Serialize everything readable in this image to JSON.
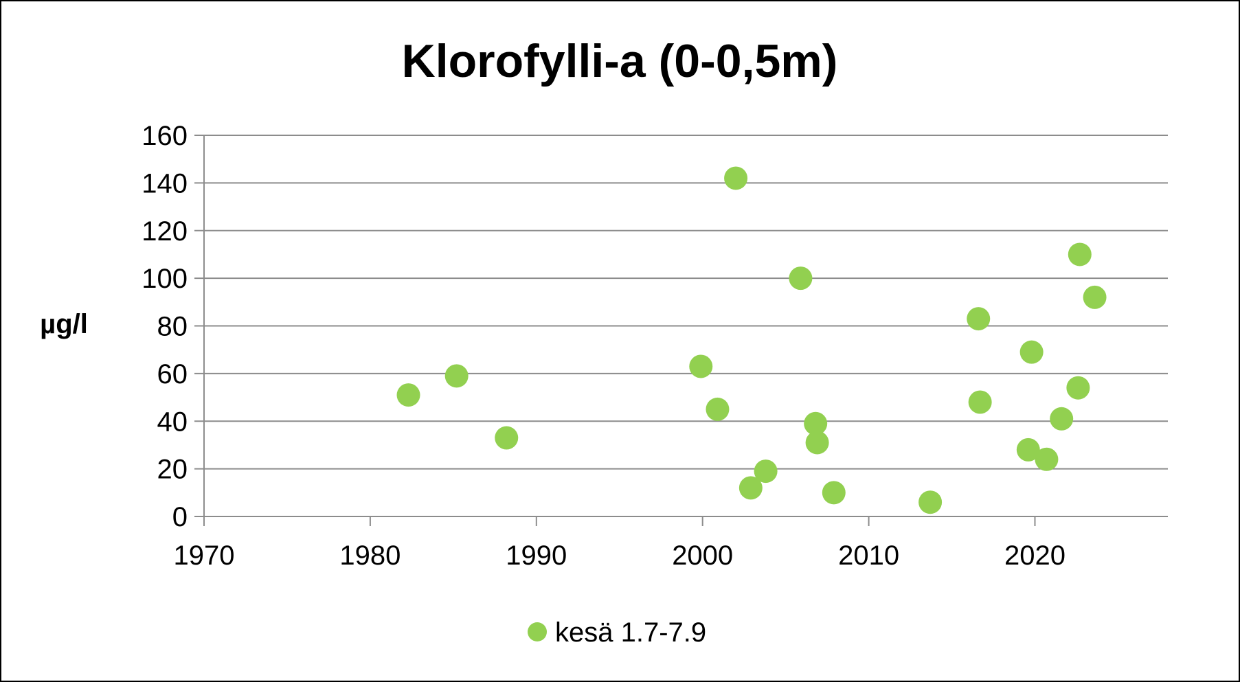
{
  "chart_data": {
    "type": "scatter",
    "title": "Klorofylli-a (0-0,5m)",
    "xlabel": "",
    "ylabel": "µg/l",
    "xlim": [
      1970,
      2028
    ],
    "ylim": [
      0,
      160
    ],
    "x_ticks": [
      1970,
      1980,
      1990,
      2000,
      2010,
      2020
    ],
    "y_ticks": [
      0,
      20,
      40,
      60,
      80,
      100,
      120,
      140,
      160
    ],
    "grid": "horizontal",
    "legend_position": "bottom",
    "series": [
      {
        "name": "kesä 1.7-7.9",
        "color": "#92d050",
        "points": [
          {
            "x": 1982.3,
            "y": 51
          },
          {
            "x": 1985.2,
            "y": 59
          },
          {
            "x": 1988.2,
            "y": 33
          },
          {
            "x": 1999.9,
            "y": 63
          },
          {
            "x": 2000.9,
            "y": 45
          },
          {
            "x": 2002.0,
            "y": 142
          },
          {
            "x": 2002.9,
            "y": 12
          },
          {
            "x": 2003.8,
            "y": 19
          },
          {
            "x": 2005.9,
            "y": 100
          },
          {
            "x": 2006.8,
            "y": 39
          },
          {
            "x": 2006.9,
            "y": 31
          },
          {
            "x": 2007.9,
            "y": 10
          },
          {
            "x": 2013.7,
            "y": 6
          },
          {
            "x": 2016.6,
            "y": 83
          },
          {
            "x": 2016.7,
            "y": 48
          },
          {
            "x": 2019.6,
            "y": 28
          },
          {
            "x": 2019.8,
            "y": 69
          },
          {
            "x": 2020.7,
            "y": 24
          },
          {
            "x": 2021.6,
            "y": 41
          },
          {
            "x": 2022.6,
            "y": 54
          },
          {
            "x": 2022.7,
            "y": 110
          },
          {
            "x": 2023.6,
            "y": 92
          }
        ]
      }
    ]
  }
}
